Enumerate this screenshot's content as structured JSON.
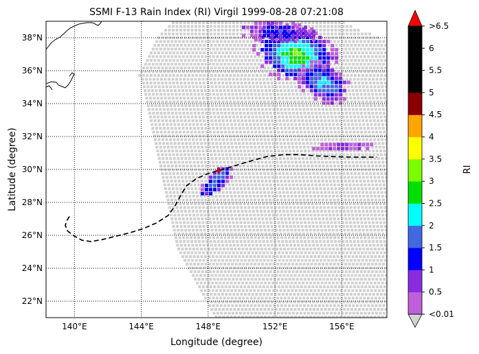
{
  "title": "SSMI F-13 Rain Index (RI) Virgil 1999-08-28 07:21:08",
  "xlabel": "Longitude (degree)",
  "ylabel": "Latitude (degree)",
  "map": {
    "lon_range": [
      138.3,
      158.7
    ],
    "lat_range": [
      21.0,
      39.0
    ],
    "lon_ticks": [
      {
        "value": 140,
        "label": "140°E"
      },
      {
        "value": 144,
        "label": "144°E"
      },
      {
        "value": 148,
        "label": "148°E"
      },
      {
        "value": 152,
        "label": "152°E"
      },
      {
        "value": 156,
        "label": "156°E"
      }
    ],
    "lat_ticks": [
      {
        "value": 22,
        "label": "22°N"
      },
      {
        "value": 24,
        "label": "24°N"
      },
      {
        "value": 26,
        "label": "26°N"
      },
      {
        "value": 28,
        "label": "28°N"
      },
      {
        "value": 30,
        "label": "30°N"
      },
      {
        "value": 32,
        "label": "32°N"
      },
      {
        "value": 34,
        "label": "34°N"
      },
      {
        "value": 36,
        "label": "36°N"
      },
      {
        "value": 38,
        "label": "38°N"
      }
    ],
    "grid": "dotted",
    "swath_color": "#d0d0d0",
    "track_color": "#000000",
    "storm_center_color": "#cc0000"
  },
  "colorbar": {
    "label": "RI",
    "tick_labels": [
      "<0.01",
      "0.5",
      "1",
      "1.5",
      "2",
      "2.5",
      "3",
      "3.5",
      "4",
      "4.5",
      "5",
      "5.5",
      "6",
      ">6.5"
    ],
    "colors": [
      "#c060d8",
      "#8a2be2",
      "#0000ff",
      "#4169e1",
      "#00ffff",
      "#00e000",
      "#7cfc00",
      "#ffff00",
      "#ffa500",
      "#8b0000",
      "#000000",
      "#000000",
      "#000000"
    ],
    "under_color": "#d3d3d3",
    "over_color": "#ff0000"
  }
}
